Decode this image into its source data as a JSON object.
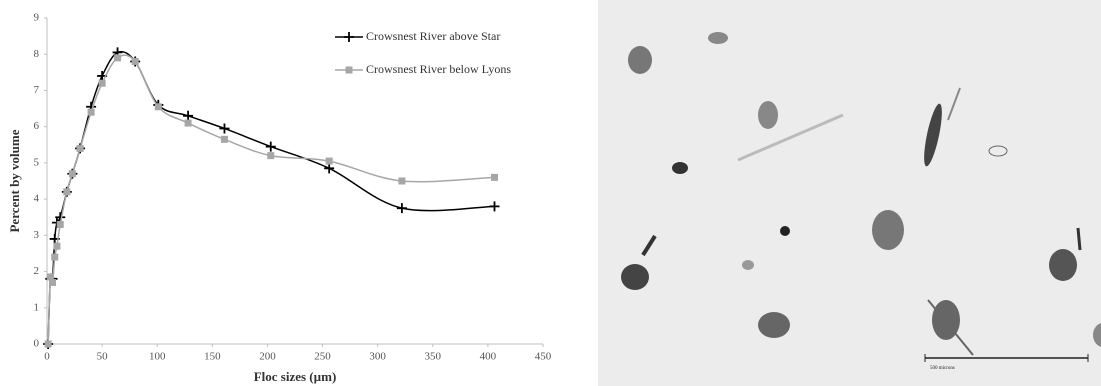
{
  "chart_data": {
    "type": "line",
    "xlabel": "Floc sizes (µm)",
    "ylabel": "Percent by volume",
    "x": [
      1,
      3,
      5,
      7,
      9,
      12,
      18,
      23,
      30,
      40,
      50,
      64,
      80,
      101,
      128,
      161,
      203,
      256,
      322,
      406
    ],
    "series": [
      {
        "name": "Crowsnest River above Star",
        "color": "#000000",
        "marker": "plus",
        "values": [
          0,
          1.8,
          1.8,
          2.9,
          3.35,
          3.5,
          4.2,
          4.7,
          5.4,
          6.55,
          7.4,
          8.05,
          7.8,
          6.6,
          6.3,
          5.95,
          5.45,
          4.85,
          3.75,
          3.8
        ]
      },
      {
        "name": "Crowsnest River below Lyons",
        "color": "#a6a6a6",
        "marker": "square",
        "values": [
          0,
          1.85,
          1.7,
          2.4,
          2.7,
          3.3,
          4.2,
          4.7,
          5.4,
          6.4,
          7.2,
          7.9,
          7.8,
          6.55,
          6.1,
          5.65,
          5.2,
          5.05,
          4.5,
          4.6
        ]
      }
    ],
    "xlim": [
      0,
      450
    ],
    "xticks": [
      0,
      50,
      100,
      150,
      200,
      250,
      300,
      350,
      400,
      450
    ],
    "ylim": [
      0,
      9
    ],
    "yticks": [
      0,
      1,
      2,
      3,
      4,
      5,
      6,
      7,
      8,
      9
    ],
    "grid": false,
    "legend": "upper right",
    "smooth": true
  },
  "image": {
    "scale_bar_label": "500 microns"
  }
}
